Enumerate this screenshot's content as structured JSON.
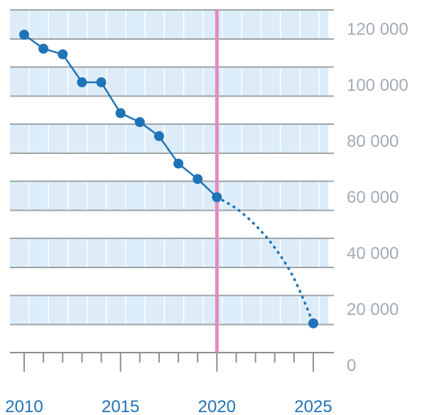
{
  "chart_data": {
    "type": "line",
    "title": "",
    "xlabel": "",
    "ylabel": "",
    "xlim": [
      2010,
      2025
    ],
    "ylim": [
      0,
      120000
    ],
    "grid": true,
    "colors": {
      "band": "#dcedf9",
      "band_edge": "#9ea3a8",
      "cell_divider": "#ffffff",
      "series": "#1f73b7",
      "highlight_line": "#e48bbf",
      "y_tick_text": "#a3abb6",
      "x_tick_text": "#1f73b7",
      "axis": "#8a8f94"
    },
    "y_ticks": [
      {
        "value": 0,
        "label": "0"
      },
      {
        "value": 20000,
        "label": "20 000"
      },
      {
        "value": 40000,
        "label": "40 000"
      },
      {
        "value": 60000,
        "label": "60 000"
      },
      {
        "value": 80000,
        "label": "80 000"
      },
      {
        "value": 100000,
        "label": "100 000"
      },
      {
        "value": 120000,
        "label": "120 000"
      }
    ],
    "x_ticks": [
      {
        "value": 2010,
        "label": "2010"
      },
      {
        "value": 2015,
        "label": "2015"
      },
      {
        "value": 2020,
        "label": "2020"
      },
      {
        "value": 2025,
        "label": "2025"
      }
    ],
    "vertical_marker": {
      "x": 2020
    },
    "series": [
      {
        "style": "solid-markers",
        "points": [
          {
            "x": 2010,
            "y": 118000
          },
          {
            "x": 2011,
            "y": 113000
          },
          {
            "x": 2012,
            "y": 111000
          },
          {
            "x": 2013,
            "y": 101000
          },
          {
            "x": 2014,
            "y": 101000
          },
          {
            "x": 2015,
            "y": 90000
          },
          {
            "x": 2016,
            "y": 86800
          },
          {
            "x": 2017,
            "y": 81800
          },
          {
            "x": 2018,
            "y": 72000
          },
          {
            "x": 2019,
            "y": 66500
          },
          {
            "x": 2020,
            "y": 60000
          }
        ]
      },
      {
        "style": "dotted-projection",
        "points": [
          {
            "x": 2020,
            "y": 60000
          },
          {
            "x": 2021,
            "y": 56000
          },
          {
            "x": 2022,
            "y": 50000
          },
          {
            "x": 2023,
            "y": 42000
          },
          {
            "x": 2024,
            "y": 31000
          },
          {
            "x": 2025,
            "y": 15000
          }
        ]
      }
    ]
  }
}
